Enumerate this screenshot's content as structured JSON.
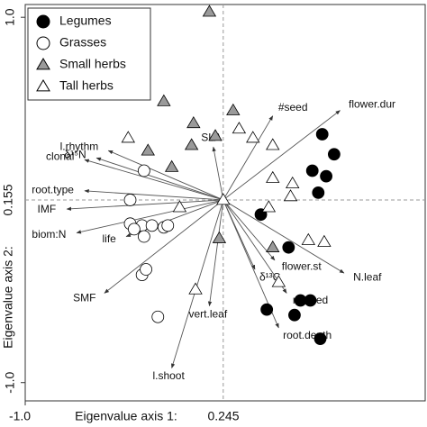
{
  "chart_data": {
    "type": "biplot",
    "xlabel": "Eigenvalue axis 1:",
    "x_eigen": "0.245",
    "ylabel": "Eigenvalue axis 2:",
    "y_eigen": "0.155",
    "xlim": [
      -1.0,
      1.02
    ],
    "ylim": [
      -1.1,
      1.07
    ],
    "xticks": [
      {
        "value": -1.0,
        "label": "-1.0"
      }
    ],
    "yticks": [
      {
        "value": -1.0,
        "label": "-1.0"
      },
      {
        "value": 1.0,
        "label": "1.0"
      }
    ],
    "legend": "upper left",
    "series": [
      {
        "name": "Legumes",
        "marker": "circle",
        "color": "#000000",
        "x": [
          0.5,
          0.56,
          0.45,
          0.52,
          0.48,
          0.19,
          0.33,
          0.39,
          0.44,
          0.22,
          0.36,
          0.49
        ],
        "y": [
          0.36,
          0.25,
          0.16,
          0.13,
          0.04,
          -0.08,
          -0.26,
          -0.55,
          -0.55,
          -0.6,
          -0.63,
          -0.76
        ]
      },
      {
        "name": "Grasses",
        "marker": "circle",
        "color": "#ffffff",
        "x": [
          -0.4,
          -0.47,
          -0.47,
          -0.41,
          -0.36,
          -0.4,
          -0.3,
          -0.28,
          -0.41,
          -0.39,
          -0.33,
          -0.45
        ],
        "y": [
          0.16,
          0.0,
          -0.13,
          -0.14,
          -0.14,
          -0.2,
          -0.15,
          -0.14,
          -0.41,
          -0.38,
          -0.64,
          -0.16
        ]
      },
      {
        "name": "Small herbs",
        "marker": "triangle",
        "color": "#9a9a9a",
        "x": [
          -0.07,
          -0.3,
          -0.15,
          0.05,
          -0.04,
          -0.16,
          -0.38,
          -0.26,
          -0.02,
          0.25
        ],
        "y": [
          1.03,
          0.54,
          0.42,
          0.49,
          0.35,
          0.3,
          0.27,
          0.18,
          -0.21,
          -0.26
        ]
      },
      {
        "name": "Tall herbs",
        "marker": "triangle",
        "color": "#ffffff",
        "x": [
          -0.48,
          0.08,
          0.15,
          0.25,
          0.25,
          0.34,
          0.35,
          -0.22,
          0.0,
          0.23,
          0.43,
          0.51,
          -0.14,
          0.28
        ],
        "y": [
          0.34,
          0.39,
          0.34,
          0.3,
          0.12,
          0.02,
          0.09,
          -0.04,
          0.0,
          -0.04,
          -0.22,
          -0.23,
          -0.49,
          -0.45
        ]
      }
    ],
    "vectors": [
      {
        "label": "flower.dur",
        "x": 0.59,
        "y": 0.49
      },
      {
        "label": "#seed",
        "x": 0.25,
        "y": 0.46
      },
      {
        "label": "SLA",
        "x": -0.05,
        "y": 0.29
      },
      {
        "label": "l.rhythm",
        "x": -0.58,
        "y": 0.27
      },
      {
        "label": "δ¹⁵N",
        "x": -0.64,
        "y": 0.23
      },
      {
        "label": "clonal",
        "x": -0.7,
        "y": 0.22
      },
      {
        "label": "root.type",
        "x": -0.7,
        "y": 0.05
      },
      {
        "label": "IMF",
        "x": -0.79,
        "y": -0.05
      },
      {
        "label": "biom:N",
        "x": -0.74,
        "y": -0.18
      },
      {
        "label": "life",
        "x": -0.49,
        "y": -0.2
      },
      {
        "label": "SMF",
        "x": -0.6,
        "y": -0.51
      },
      {
        "label": "l.shoot",
        "x": -0.26,
        "y": -0.92
      },
      {
        "label": "vert.leaf",
        "x": -0.07,
        "y": -0.58
      },
      {
        "label": "δ¹³C",
        "x": 0.16,
        "y": -0.38
      },
      {
        "label": "flower.st",
        "x": 0.26,
        "y": -0.33
      },
      {
        "label": "m.seed",
        "x": 0.32,
        "y": -0.51
      },
      {
        "label": "root.depth",
        "x": 0.28,
        "y": -0.7
      },
      {
        "label": "N.leaf",
        "x": 0.61,
        "y": -0.4
      }
    ]
  }
}
